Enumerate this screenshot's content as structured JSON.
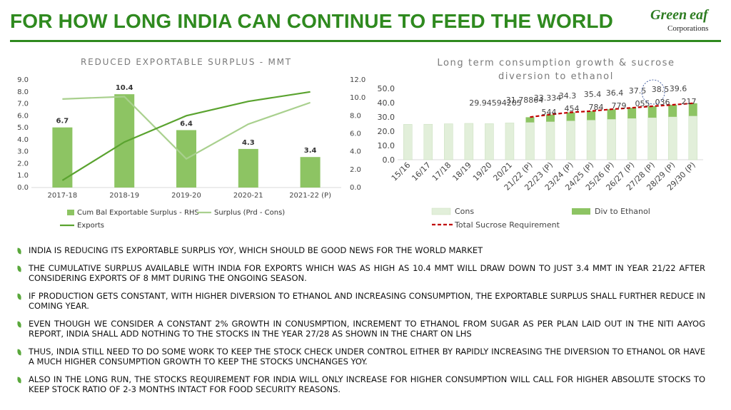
{
  "page": {
    "title": "FOR HOW LONG INDIA CAN CONTINUE TO FEED THE WORLD",
    "logo": {
      "line1": "Green eaf",
      "line2": "Corporations"
    },
    "colors": {
      "brand": "#2f8a1f",
      "bar": "#8dc463",
      "light_line": "#a9d08e",
      "dark_line": "#5aa32f",
      "cons_bar": "#e2efda",
      "req_line": "#c00000"
    }
  },
  "bullets": [
    "INDIA IS REDUCING ITS EXPORTABLE SURPLIS YOY, WHICH SHOULD BE GOOD NEWS FOR THE WORLD MARKET",
    "THE CUMULATIVE SURPLUS AVAILABLE WITH INDIA FOR EXPORTS WHICH WAS AS HIGH AS 10.4 MMT WILL DRAW DOWN TO JUST 3.4 MMT IN YEAR 21/22 AFTER CONSIDERING EXPORTS OF 8 MMT DURING THE ONGOING SEASON.",
    "IF PRODUCTION GETS CONSTANT, WITH HIGHER DIVERSION TO ETHANOL AND INCREASING CONSUMPTION, THE EXPORTABLE SURPLUS SHALL FURTHER REDUCE IN COMING YEAR.",
    "EVEN THOUGH WE CONSIDER A CONSTANT 2% GROWTH IN CONUSMPTION, INCREMENT TO ETHANOL FROM SUGAR AS PER PLAN LAID OUT IN THE NITI AAYOG REPORT, INDIA SHALL ADD NOTHING TO THE STOCKS IN THE YEAR 27/28 AS SHOWN IN THE CHART ON LHS",
    "THUS, INDIA STILL NEED TO DO SOME WORK TO KEEP THE STOCK CHECK UNDER CONTROL EITHER BY RAPIDLY INCREASING THE DIVERSION TO ETHANOL OR HAVE A MUCH HIGHER CONSUMPTION GROWTH TO KEEP THE STOCKS UNCHANGES YOY.",
    "ALSO IN THE LONG RUN, THE STOCKS REQUIREMENT FOR INDIA WILL ONLY INCREASE FOR HIGHER CONSUMPTION WILL CALL FOR HIGHER ABSOLUTE STOCKS TO KEEP STOCK RATIO OF 2-3 MONTHS INTACT FOR FOOD SECURITY REASONS."
  ],
  "chart_data": [
    {
      "type": "bar",
      "title": "REDUCED EXPORTABLE SURPLUS - MMT",
      "categories": [
        "2017-18",
        "2018-19",
        "2019-20",
        "2020-21",
        "2021-22 (P)"
      ],
      "left_axis": {
        "min": 0,
        "max": 9,
        "step": 1,
        "ticks": [
          "0.0",
          "1.0",
          "2.0",
          "3.0",
          "4.0",
          "5.0",
          "6.0",
          "7.0",
          "8.0",
          "9.0"
        ]
      },
      "right_axis": {
        "min": 0,
        "max": 12,
        "step": 2,
        "ticks": [
          "0.0",
          "2.0",
          "4.0",
          "6.0",
          "8.0",
          "10.0",
          "12.0"
        ]
      },
      "series": [
        {
          "name": "Cum Bal Exportable Surplus - RHS",
          "kind": "bar",
          "axis": "right",
          "values": [
            6.7,
            10.4,
            6.4,
            4.3,
            3.4
          ],
          "labels": [
            "6.7",
            "10.4",
            "6.4",
            "4.3",
            "3.4"
          ]
        },
        {
          "name": "Surplus (Prd - Cons)",
          "kind": "line",
          "axis": "left",
          "values": [
            7.4,
            7.6,
            2.4,
            5.3,
            7.1
          ]
        },
        {
          "name": "Exports",
          "kind": "line",
          "axis": "left",
          "values": [
            0.6,
            3.8,
            6.0,
            7.2,
            8.0
          ]
        }
      ],
      "legend": "bottom"
    },
    {
      "type": "bar",
      "title_line1": "Long term consumption growth & sucrose",
      "title_line2": "diversion to ethanol",
      "categories": [
        "15/16",
        "16/17",
        "17/18",
        "18/19",
        "19/20",
        "20/21",
        "21/22 (P)",
        "22/23 (P)",
        "23/24 (P)",
        "24/25 (P)",
        "25/26 (P)",
        "26/27 (P)",
        "27/28 (P)",
        "28/29 (P)",
        "29/30 (P)"
      ],
      "y_axis": {
        "min": 0,
        "max": 50,
        "step": 10,
        "ticks": [
          "0.0",
          "10.0",
          "20.0",
          "30.0",
          "40.0",
          "50.0"
        ]
      },
      "series": [
        {
          "name": "Cons",
          "kind": "stacked_bar",
          "values": [
            24.8,
            24.9,
            25.2,
            25.5,
            25.3,
            25.8,
            26.2,
            26.7,
            27.3,
            27.8,
            28.4,
            29.0,
            29.5,
            30.1,
            30.7
          ]
        },
        {
          "name": "Div to Ethanol",
          "kind": "stacked_bar",
          "values": [
            0,
            0,
            0,
            0,
            0,
            0,
            3.6,
            5.0,
            5.9,
            6.3,
            7.0,
            7.4,
            8.0,
            8.4,
            8.9
          ]
        },
        {
          "name": "Total Sucrose Requirement",
          "kind": "line",
          "style": "dashed",
          "values": [
            null,
            null,
            null,
            null,
            null,
            null,
            29.9,
            31.7,
            33.2,
            34.1,
            35.4,
            36.4,
            37.5,
            38.5,
            39.6
          ]
        }
      ],
      "data_labels": [
        "29.94594205",
        "31.78864",
        "33.334",
        "544",
        "34.3",
        "454",
        "35.4",
        "784",
        "36.4",
        "779",
        "37.5",
        "055",
        "38.5",
        "036",
        "39.6",
        "217"
      ],
      "legend": "bottom"
    }
  ]
}
